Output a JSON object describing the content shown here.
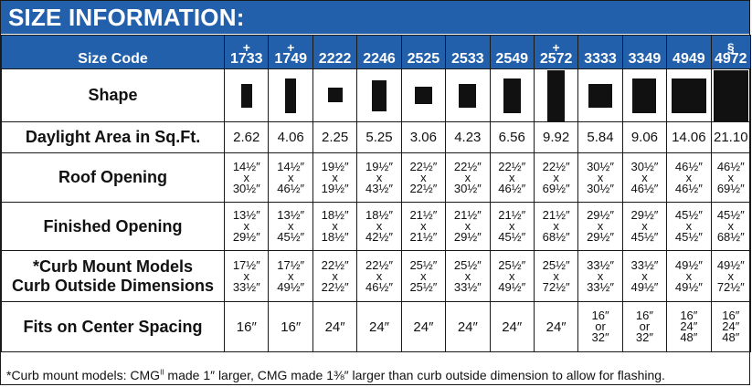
{
  "title": "SIZE INFORMATION:",
  "header": {
    "label": "Size Code",
    "codes": [
      {
        "mark": "+",
        "code": "1733"
      },
      {
        "mark": "+",
        "code": "1749"
      },
      {
        "mark": "",
        "code": "2222"
      },
      {
        "mark": "",
        "code": "2246"
      },
      {
        "mark": "",
        "code": "2525"
      },
      {
        "mark": "",
        "code": "2533"
      },
      {
        "mark": "",
        "code": "2549"
      },
      {
        "mark": "+",
        "code": "2572"
      },
      {
        "mark": "",
        "code": "3333"
      },
      {
        "mark": "",
        "code": "3349"
      },
      {
        "mark": "",
        "code": "4949"
      },
      {
        "mark": "§",
        "code": "4972"
      }
    ]
  },
  "shape_label": "Shape",
  "daylight": {
    "label": "Daylight Area in Sq.Ft.",
    "values": [
      "2.62",
      "4.06",
      "2.25",
      "5.25",
      "3.06",
      "4.23",
      "6.56",
      "9.92",
      "5.84",
      "9.06",
      "14.06",
      "21.10"
    ]
  },
  "roof": {
    "label": "Roof Opening",
    "values": [
      [
        "14½″",
        "x",
        "30½″"
      ],
      [
        "14½″",
        "x",
        "46½″"
      ],
      [
        "19½″",
        "x",
        "19½″"
      ],
      [
        "19½″",
        "x",
        "43½″"
      ],
      [
        "22½″",
        "x",
        "22½″"
      ],
      [
        "22½″",
        "x",
        "30½″"
      ],
      [
        "22½″",
        "x",
        "46½″"
      ],
      [
        "22½″",
        "x",
        "69½″"
      ],
      [
        "30½″",
        "x",
        "30½″"
      ],
      [
        "30½″",
        "x",
        "46½″"
      ],
      [
        "46½″",
        "x",
        "46½″"
      ],
      [
        "46½″",
        "x",
        "69½″"
      ]
    ]
  },
  "finished": {
    "label": "Finished Opening",
    "values": [
      [
        "13½″",
        "x",
        "29½″"
      ],
      [
        "13½″",
        "x",
        "45½″"
      ],
      [
        "18½″",
        "x",
        "18½″"
      ],
      [
        "18½″",
        "x",
        "42½″"
      ],
      [
        "21½″",
        "x",
        "21½″"
      ],
      [
        "21½″",
        "x",
        "29½″"
      ],
      [
        "21½″",
        "x",
        "45½″"
      ],
      [
        "21½″",
        "x",
        "68½″"
      ],
      [
        "29½″",
        "x",
        "29½″"
      ],
      [
        "29½″",
        "x",
        "45½″"
      ],
      [
        "45½″",
        "x",
        "45½″"
      ],
      [
        "45½″",
        "x",
        "68½″"
      ]
    ]
  },
  "curb": {
    "label_line1": "*Curb Mount Models",
    "label_line2": "Curb Outside Dimensions",
    "values": [
      [
        "17½″",
        "x",
        "33½″"
      ],
      [
        "17½″",
        "x",
        "49½″"
      ],
      [
        "22½″",
        "x",
        "22½″"
      ],
      [
        "22½″",
        "x",
        "46½″"
      ],
      [
        "25½″",
        "x",
        "25½″"
      ],
      [
        "25½″",
        "x",
        "33½″"
      ],
      [
        "25½″",
        "x",
        "49½″"
      ],
      [
        "25½″",
        "x",
        "72½″"
      ],
      [
        "33½″",
        "x",
        "33½″"
      ],
      [
        "33½″",
        "x",
        "49½″"
      ],
      [
        "49½″",
        "x",
        "49½″"
      ],
      [
        "49½″",
        "x",
        "72½″"
      ]
    ]
  },
  "spacing": {
    "label": "Fits on Center Spacing",
    "values": [
      [
        "16″"
      ],
      [
        "16″"
      ],
      [
        "24″"
      ],
      [
        "24″"
      ],
      [
        "24″"
      ],
      [
        "24″"
      ],
      [
        "24″"
      ],
      [
        "24″"
      ],
      [
        "16″",
        "or",
        "32″"
      ],
      [
        "16″",
        "or",
        "32″"
      ],
      [
        "16″",
        "24″",
        "48″"
      ],
      [
        "16″",
        "24″",
        "48″"
      ]
    ]
  },
  "footnote": {
    "part1": "*Curb mount models: CMG",
    "sup": "II",
    "part2": " made 1″ larger, CMG made 1⅜″ larger than curb outside dimension to allow for flashing."
  }
}
